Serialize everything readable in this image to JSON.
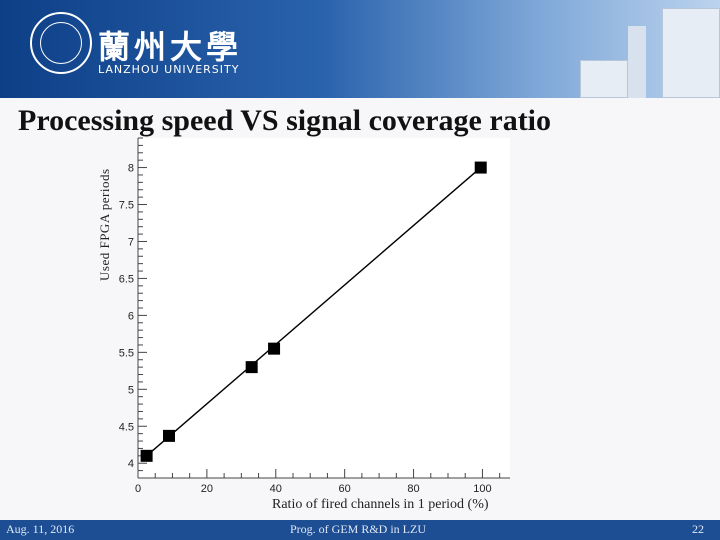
{
  "header": {
    "logo_cn": "蘭州大學",
    "logo_en": "LANZHOU UNIVERSITY"
  },
  "slide": {
    "title": "Processing speed VS signal coverage ratio"
  },
  "footer": {
    "date": "Aug. 11, 2016",
    "center": "Prog. of GEM R&D in LZU",
    "page": "22"
  },
  "chart_data": {
    "type": "scatter",
    "xlabel": "Ratio of fired channels in 1 period (%)",
    "ylabel": "Used FPGA periods",
    "xlim": [
      0,
      108
    ],
    "ylim": [
      3.8,
      8.4
    ],
    "x_ticks": [
      0,
      20,
      40,
      60,
      80,
      100
    ],
    "y_ticks": [
      4,
      4.5,
      5,
      5.5,
      6,
      6.5,
      7,
      7.5,
      8
    ],
    "series": [
      {
        "points": [
          {
            "x": 2.5,
            "y": 4.1
          },
          {
            "x": 9,
            "y": 4.37
          },
          {
            "x": 33,
            "y": 5.3
          },
          {
            "x": 39.5,
            "y": 5.55
          },
          {
            "x": 99.5,
            "y": 8.0
          }
        ],
        "fit_line": [
          {
            "x": 2.5,
            "y": 4.1
          },
          {
            "x": 99.5,
            "y": 8.0
          }
        ]
      }
    ],
    "grid": false,
    "marker": "square",
    "colors": {
      "marker": "#000000",
      "line": "#000000"
    }
  }
}
